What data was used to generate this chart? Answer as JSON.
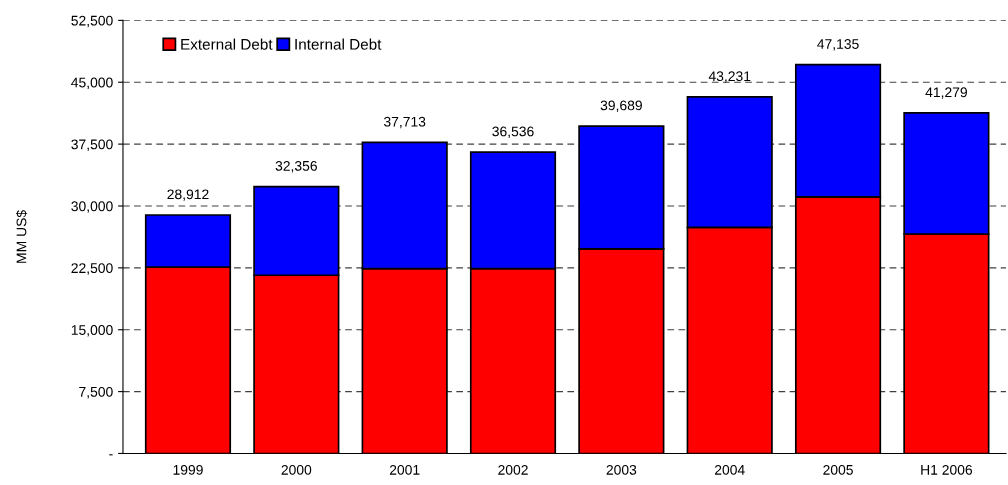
{
  "chart_data": {
    "type": "bar",
    "stacked": true,
    "ylabel": "MM US$",
    "categories": [
      "1999",
      "2000",
      "2001",
      "2002",
      "2003",
      "2004",
      "2005",
      "H1 2006"
    ],
    "series": [
      {
        "name": "External Debt",
        "color": "#ff0000",
        "values": [
          22600,
          21600,
          22400,
          22400,
          24800,
          27400,
          31100,
          26600
        ]
      },
      {
        "name": "Internal Debt",
        "color": "#0000ff",
        "values": [
          6312,
          10756,
          15313,
          14136,
          14889,
          15831,
          16035,
          14679
        ]
      }
    ],
    "totals": [
      "28,912",
      "32,356",
      "37,713",
      "36,536",
      "39,689",
      "43,231",
      "47,135",
      "41,279"
    ],
    "ylim": [
      0,
      52500
    ],
    "yticks": [
      {
        "value": 0,
        "label": "-"
      },
      {
        "value": 7500,
        "label": "7,500"
      },
      {
        "value": 15000,
        "label": "15,000"
      },
      {
        "value": 22500,
        "label": "22,500"
      },
      {
        "value": 30000,
        "label": "30,000"
      },
      {
        "value": 37500,
        "label": "37,500"
      },
      {
        "value": 45000,
        "label": "45,000"
      },
      {
        "value": 52500,
        "label": "52,500"
      }
    ],
    "grid": "y",
    "legend": "top left"
  }
}
